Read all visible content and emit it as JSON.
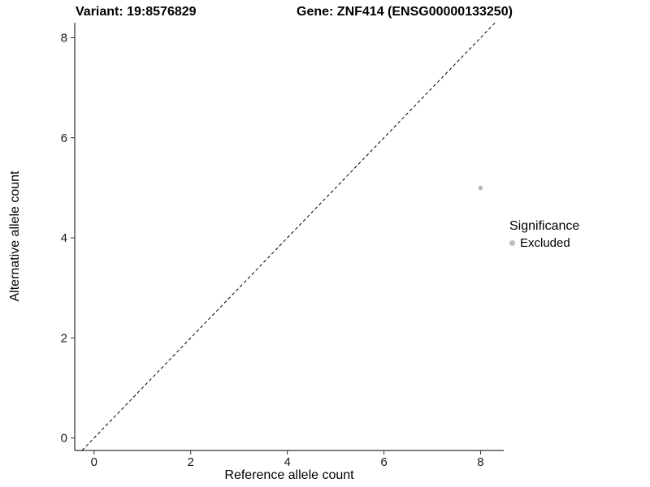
{
  "chart_data": {
    "type": "scatter",
    "title_left": "Variant: 19:8576829",
    "title_right": "Gene: ZNF414 (ENSG00000133250)",
    "xlabel": "Reference allele count",
    "ylabel": "Alternative allele count",
    "xlim": [
      -0.4,
      8.48
    ],
    "ylim": [
      -0.25,
      8.3
    ],
    "xticks": [
      0,
      2,
      4,
      6,
      8
    ],
    "yticks": [
      0,
      2,
      4,
      6,
      8
    ],
    "grid": false,
    "identity_line": {
      "equation": "y = x",
      "style": "dashed",
      "color": "#000000"
    },
    "points": [
      {
        "x": 8,
        "y": 5,
        "significance": "Excluded",
        "color": "#b5b5b5"
      }
    ],
    "legend": {
      "title": "Significance",
      "position": "right",
      "entries": [
        {
          "label": "Excluded",
          "color": "#bdbdbd"
        }
      ]
    },
    "colors": {
      "axis_line": "#000000",
      "tick_mark": "#333333",
      "tick_label": "#1a1a1a",
      "background": "#ffffff"
    }
  }
}
